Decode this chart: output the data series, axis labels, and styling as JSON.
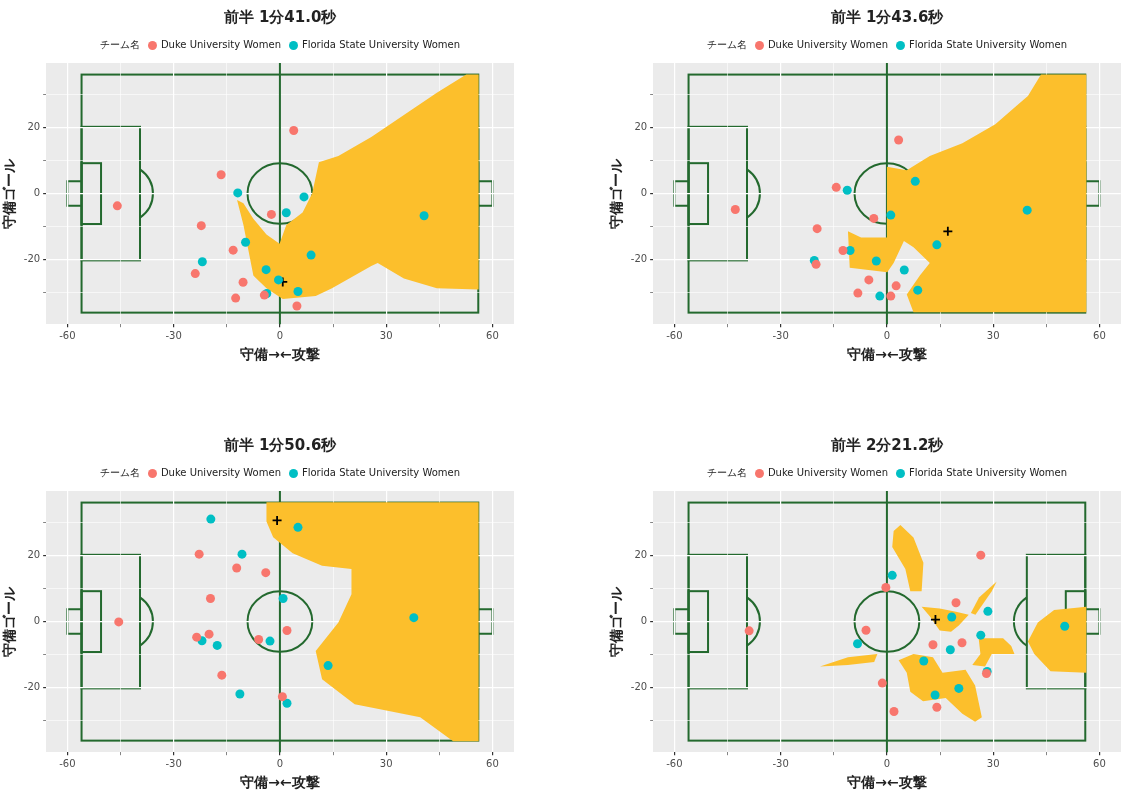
{
  "chart_data": [
    {
      "type": "scatter",
      "title": "前半 1分41.0秒",
      "ref_lines": [
        {
          "axis": "x",
          "value": 0,
          "color": "#23692e"
        }
      ],
      "xlabel": "守備→←攻撃",
      "ylabel": "守備ゴール",
      "legend_title": "チーム名",
      "legend": "top",
      "grid": true,
      "marker": "circle",
      "xlim": [
        -66,
        66
      ],
      "ylim": [
        -39.5,
        39.5
      ],
      "xticks": [
        -60,
        {
          "value": -45,
          "label": null
        },
        -30,
        {
          "value": -15,
          "label": null
        },
        0,
        {
          "value": 15,
          "label": null
        },
        30,
        {
          "value": 45,
          "label": null
        },
        60
      ],
      "yticks": [
        {
          "value": -30,
          "label": null
        },
        -20,
        {
          "value": -10,
          "label": null
        },
        0,
        {
          "value": 10,
          "label": null
        },
        20,
        {
          "value": 30,
          "label": null
        }
      ],
      "series": [
        {
          "type": "area",
          "marker": "none",
          "color": "#fcbf2c",
          "x": [
            -12.1,
            -10.3,
            -8.9,
            -7.5,
            -3.8,
            0.8,
            10.1,
            14.7,
            25.8,
            27.6,
            35,
            44.3,
            56.1,
            56.1,
            52.6,
            44.3,
            35,
            25.8,
            16.5,
            11,
            9.1,
            6.4,
            1.8,
            -0.1,
            -3.8,
            -7.5,
            -10.3
          ],
          "values": [
            -1.9,
            -9.5,
            -17.1,
            -24.8,
            -28.6,
            -31.9,
            -31,
            -28.6,
            -21.9,
            -21,
            -25.7,
            -28.6,
            -29,
            36,
            36,
            30.5,
            23.8,
            17.1,
            11.4,
            9.5,
            0,
            -5.7,
            -9.5,
            -15.2,
            -12.4,
            -7.6,
            -2.9
          ]
        },
        {
          "name": "Duke University Women",
          "color": "#f8766d",
          "x": [
            3.9,
            -16.6,
            -45.9,
            -2.4,
            -22.2,
            -13.2,
            -23.9,
            -10.4,
            -4.4,
            -12.5,
            4.8
          ],
          "values": [
            19.1,
            5.7,
            -3.7,
            -6.3,
            -9.7,
            -17.1,
            -24.2,
            -26.8,
            -30.7,
            -31.6,
            -34.0
          ]
        },
        {
          "name": "Florida State University Women",
          "color": "#00bfc4",
          "x": [
            -11.9,
            6.8,
            1.8,
            -9.7,
            -21.9,
            8.8,
            -3.9,
            -0.4,
            5.1,
            40.7
          ],
          "values": [
            0.2,
            -1.0,
            -5.8,
            -14.7,
            -20.6,
            -18.6,
            -23.0,
            -26.1,
            -29.6,
            -6.7
          ]
        },
        {
          "color": "#00bfc4",
          "x": [
            -3.7
          ],
          "values": [
            -30.2
          ]
        },
        {
          "color": "#000000",
          "marker": "cross",
          "x": [
            0.8
          ],
          "values": [
            -26.7
          ]
        }
      ]
    },
    {
      "type": "scatter",
      "title": "前半 1分43.6秒",
      "ref_lines": [
        {
          "axis": "x",
          "value": 0,
          "color": "#23692e"
        }
      ],
      "xlabel": "守備→←攻撃",
      "ylabel": "守備ゴール",
      "legend_title": "チーム名",
      "legend": "top",
      "grid": true,
      "marker": "circle",
      "xlim": [
        -66,
        66
      ],
      "ylim": [
        -39.5,
        39.5
      ],
      "xticks": [
        -60,
        {
          "value": -45,
          "label": null
        },
        -30,
        {
          "value": -15,
          "label": null
        },
        0,
        {
          "value": 15,
          "label": null
        },
        30,
        {
          "value": 45,
          "label": null
        },
        60
      ],
      "yticks": [
        {
          "value": -30,
          "label": null
        },
        -20,
        {
          "value": -10,
          "label": null
        },
        0,
        {
          "value": 10,
          "label": null
        },
        20,
        {
          "value": 30,
          "label": null
        }
      ],
      "series": [
        {
          "type": "area",
          "marker": "none",
          "color": "#fcbf2c",
          "x": [
            0,
            5.6,
            12.1,
            21.3,
            30.6,
            39.8,
            43.5,
            56.3,
            56.3,
            7.5,
            5.6,
            9.3,
            12.1,
            7.5,
            4.8,
            1.9,
            0.1,
            -10.5,
            -11,
            -7.3,
            0
          ],
          "values": [
            8.1,
            7.1,
            11.4,
            15.2,
            21,
            29.5,
            36,
            36,
            -35.9,
            -35.9,
            -30.5,
            -24.8,
            -21,
            -16.2,
            -14.3,
            -21,
            -23.8,
            -22.4,
            -11.4,
            -13.3,
            -13.3
          ]
        },
        {
          "name": "Duke University Women",
          "color": "#f8766d",
          "x": [
            3.3,
            -14.3,
            -42.8,
            -3.7,
            -19.7,
            -12.4,
            -20,
            -5.1,
            2.6,
            -8.2,
            1.1
          ],
          "values": [
            16.2,
            1.9,
            -4.8,
            -7.5,
            -10.6,
            -17.2,
            -21.4,
            -26.1,
            -27.9,
            -30.1,
            -31.0
          ]
        },
        {
          "name": "Florida State University Women",
          "color": "#00bfc4",
          "x": [
            8,
            -11.2,
            1.1,
            39.6,
            14.1,
            -10.4,
            -20.5,
            -3,
            8.7,
            -2
          ],
          "values": [
            3.7,
            1.0,
            -6.5,
            -5.0,
            -15.5,
            -17.2,
            -20.2,
            -20.4,
            -29.2,
            -31
          ]
        },
        {
          "color": "#00bfc4",
          "x": [
            4.9
          ],
          "values": [
            -23.1
          ]
        },
        {
          "color": "#000000",
          "marker": "cross",
          "x": [
            17.2
          ],
          "values": [
            -11.4
          ]
        }
      ]
    },
    {
      "type": "scatter",
      "title": "前半 1分50.6秒",
      "ref_lines": [
        {
          "axis": "x",
          "value": 0,
          "color": "#23692e"
        }
      ],
      "xlabel": "守備→←攻撃",
      "ylabel": "守備ゴール",
      "legend_title": "チーム名",
      "legend": "top",
      "grid": true,
      "marker": "circle",
      "xlim": [
        -66,
        66
      ],
      "ylim": [
        -39.5,
        39.5
      ],
      "xticks": [
        -60,
        {
          "value": -45,
          "label": null
        },
        -30,
        {
          "value": -15,
          "label": null
        },
        0,
        {
          "value": 15,
          "label": null
        },
        30,
        {
          "value": 45,
          "label": null
        },
        60
      ],
      "yticks": [
        {
          "value": -30,
          "label": null
        },
        -20,
        {
          "value": -10,
          "label": null
        },
        0,
        {
          "value": 10,
          "label": null
        },
        20,
        {
          "value": 30,
          "label": null
        }
      ],
      "series": [
        {
          "type": "area",
          "marker": "none",
          "color": "#fcbf2c",
          "x": [
            -3.8,
            56.1,
            56.1,
            48.9,
            39.6,
            30.4,
            21.1,
            11.9,
            10.1,
            16.5,
            20.2,
            20.2,
            11.9,
            3.6,
            -1.9,
            -3.8
          ],
          "values": [
            36.1,
            36.1,
            -36.2,
            -36.2,
            -28.9,
            -27,
            -25,
            -17.4,
            -8.9,
            -0.3,
            8.3,
            15.9,
            16.9,
            20.7,
            25.5,
            30.3
          ]
        },
        {
          "name": "Duke University Women",
          "color": "#f8766d",
          "x": [
            -22.8,
            -12.2,
            -4,
            -19.6,
            -45.5,
            2,
            -20,
            -23.5,
            -6,
            -16.4,
            0.7
          ],
          "values": [
            20.4,
            16.2,
            14.8,
            7.0,
            -0.1,
            -2.7,
            -3.8,
            -4.7,
            -5.4,
            -16.2,
            -22.7
          ]
        },
        {
          "name": "Florida State University Women",
          "color": "#00bfc4",
          "x": [
            -19.5,
            5.1,
            -10.7,
            37.8,
            -22,
            -17.7,
            -2.8,
            13.6,
            -11.3,
            2
          ],
          "values": [
            31,
            28.5,
            20.4,
            1.2,
            -5.8,
            -7.2,
            -5.9,
            -13.3,
            -21.9,
            -24.7
          ]
        },
        {
          "color": "#00bfc4",
          "x": [
            0.9
          ],
          "values": [
            7.0
          ]
        },
        {
          "color": "#000000",
          "marker": "cross",
          "x": [
            -0.8
          ],
          "values": [
            30.6
          ]
        }
      ]
    },
    {
      "type": "scatter",
      "title": "前半 2分21.2秒",
      "ref_lines": [
        {
          "axis": "x",
          "value": 0,
          "color": "#23692e"
        }
      ],
      "xlabel": "守備→←攻撃",
      "ylabel": "守備ゴール",
      "legend_title": "チーム名",
      "legend": "top",
      "grid": true,
      "marker": "circle",
      "xlim": [
        -66,
        66
      ],
      "ylim": [
        -39.5,
        39.5
      ],
      "xticks": [
        -60,
        {
          "value": -45,
          "label": null
        },
        -30,
        {
          "value": -15,
          "label": null
        },
        0,
        {
          "value": 15,
          "label": null
        },
        30,
        {
          "value": 45,
          "label": null
        },
        60
      ],
      "yticks": [
        {
          "value": -30,
          "label": null
        },
        -20,
        {
          "value": -10,
          "label": null
        },
        0,
        {
          "value": 10,
          "label": null
        },
        20,
        {
          "value": 30,
          "label": null
        }
      ],
      "series": [
        {
          "type": "area",
          "marker": "none",
          "color": "#fcbf2c",
          "x": [
            3.8,
            7.5,
            10.3,
            9.8,
            6.6,
            5.2,
            1.5,
            1.9
          ],
          "values": [
            29.2,
            25.4,
            17.8,
            9.2,
            9.2,
            15.9,
            22.6,
            27.4
          ]
        },
        {
          "type": "area",
          "marker": "none",
          "color": "#fcbf2c",
          "x": [
            9.8,
            14.9,
            19.5,
            23.1,
            20.3,
            18.1,
            14.9,
            12.1
          ],
          "values": [
            4.5,
            4.0,
            3.0,
            2.1,
            -1.2,
            -3.1,
            -2.7,
            1.6
          ]
        },
        {
          "type": "area",
          "marker": "none",
          "color": "#fcbf2c",
          "x": [
            23.7,
            26,
            31,
            29.6,
            25
          ],
          "values": [
            2.6,
            7.3,
            12.1,
            9.2,
            2.1
          ]
        },
        {
          "type": "area",
          "marker": "none",
          "color": "#fcbf2c",
          "x": [
            25.9,
            32.8,
            35.1,
            36,
            29.6,
            27.7,
            24.1,
            26.4
          ],
          "values": [
            -5,
            -5,
            -7.4,
            -9.8,
            -9.8,
            -13.6,
            -13.1,
            -9.8
          ]
        },
        {
          "type": "area",
          "marker": "none",
          "color": "#fcbf2c",
          "x": [
            -18.9,
            -11,
            -2.7,
            -3.6,
            -11
          ],
          "values": [
            -13.6,
            -10.8,
            -9.8,
            -12.2,
            -13.1
          ]
        },
        {
          "type": "area",
          "marker": "none",
          "color": "#fcbf2c",
          "x": [
            3.3,
            7.5,
            13,
            15.7,
            22.2,
            24.9,
            26.8,
            24.9,
            21.3,
            16.6,
            10.2,
            6.6,
            5.6
          ],
          "values": [
            -11.7,
            -9.8,
            -10.8,
            -15.5,
            -14.6,
            -19.3,
            -28.9,
            -30.3,
            -27.9,
            -23.1,
            -24.1,
            -21.2,
            -15.5
          ]
        },
        {
          "type": "area",
          "marker": "none",
          "color": "#fcbf2c",
          "x": [
            39.8,
            42.6,
            47.2,
            56.3,
            56.3,
            46.2,
            41.6
          ],
          "values": [
            -6,
            -0.3,
            3.5,
            4.5,
            -15.5,
            -15,
            -9.8
          ]
        },
        {
          "name": "Duke University Women",
          "color": "#f8766d",
          "x": [
            26.5,
            -0.3,
            19.5,
            -38.9,
            -5.9,
            21.2,
            13,
            28.1,
            -1.3,
            14.1,
            2
          ],
          "values": [
            20.1,
            10.3,
            5.7,
            -2.8,
            -2.6,
            -6.4,
            -7.0,
            -15.7,
            -18.6,
            -25.9,
            -27.2
          ]
        },
        {
          "name": "Florida State University Women",
          "color": "#00bfc4",
          "x": [
            1.5,
            28.5,
            18.3,
            50.2,
            -8.3,
            26.5,
            10.4,
            28.3,
            20.3,
            13.6
          ],
          "values": [
            14,
            3.1,
            1.4,
            -1.4,
            -6.7,
            -4.1,
            -11.9,
            -15.1,
            -20.2,
            -22.2
          ]
        },
        {
          "color": "#00bfc4",
          "x": [
            17.9
          ],
          "values": [
            -8.5
          ]
        },
        {
          "color": "#000000",
          "marker": "cross",
          "x": [
            13.7
          ],
          "values": [
            0.6
          ]
        }
      ]
    }
  ]
}
